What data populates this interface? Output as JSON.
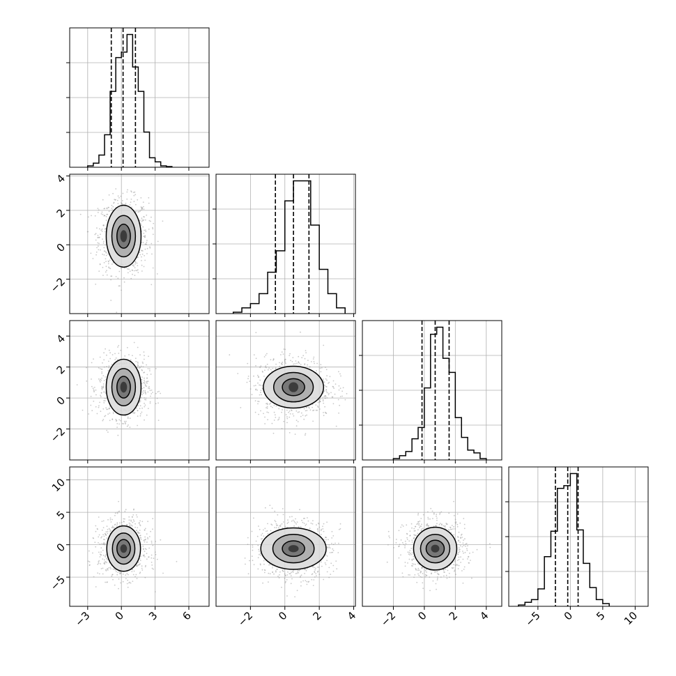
{
  "chart_data": {
    "type": "corner",
    "title": "",
    "variables": [
      {
        "axis_range": [
          -4.6,
          7.8
        ],
        "ticks": [
          -3,
          0,
          3,
          6
        ],
        "tick_labels": [
          "−3",
          "0",
          "3",
          "6"
        ],
        "quantiles": [
          -0.9,
          0.15,
          1.25
        ],
        "hist_bins": [
          -3.0,
          -2.5,
          -2.0,
          -1.5,
          -1.0,
          -0.5,
          0.0,
          0.5,
          1.0,
          1.5,
          2.0,
          2.5,
          3.0,
          3.5,
          4.0,
          4.5
        ],
        "hist_counts": [
          0.01,
          0.03,
          0.09,
          0.24,
          0.56,
          0.81,
          0.85,
          0.98,
          0.74,
          0.56,
          0.26,
          0.07,
          0.04,
          0.01,
          0.005
        ],
        "center": 0.2,
        "sigma": 1.0
      },
      {
        "axis_range": [
          -4.0,
          4.1
        ],
        "ticks": [
          -2,
          0,
          2,
          4
        ],
        "tick_labels": [
          "−2",
          "0",
          "2",
          "4"
        ],
        "quantiles": [
          -0.55,
          0.5,
          1.4
        ],
        "hist_bins": [
          -3.0,
          -2.5,
          -2.0,
          -1.5,
          -1.0,
          -0.5,
          0.0,
          0.5,
          1.0,
          1.5,
          2.0,
          2.5,
          3.0,
          3.5
        ],
        "hist_counts": [
          0.01,
          0.04,
          0.07,
          0.14,
          0.29,
          0.44,
          0.79,
          0.93,
          0.93,
          0.62,
          0.31,
          0.14,
          0.04
        ],
        "center": 0.5,
        "sigma": 1.0
      },
      {
        "axis_range": [
          -4.0,
          5.0
        ],
        "ticks": [
          -2,
          0,
          2,
          4
        ],
        "tick_labels": [
          "−2",
          "0",
          "2",
          "4"
        ],
        "quantiles": [
          -0.15,
          0.7,
          1.6
        ],
        "hist_bins": [
          -2.0,
          -1.6,
          -1.2,
          -0.8,
          -0.4,
          0.0,
          0.4,
          0.8,
          1.2,
          1.6,
          2.0,
          2.4,
          2.8,
          3.2,
          3.6,
          4.0
        ],
        "hist_counts": [
          0.01,
          0.03,
          0.06,
          0.15,
          0.23,
          0.51,
          0.89,
          0.94,
          0.72,
          0.62,
          0.3,
          0.16,
          0.07,
          0.05,
          0.01
        ],
        "center": 0.7,
        "sigma": 0.9
      },
      {
        "axis_range": [
          -9.5,
          12.0
        ],
        "ticks": [
          -5,
          0,
          5,
          10
        ],
        "tick_labels": [
          "−5",
          "0",
          "5",
          "10"
        ],
        "quantiles": [
          -2.3,
          -0.4,
          1.2
        ],
        "hist_bins": [
          -8.0,
          -7.0,
          -6.0,
          -5.0,
          -4.0,
          -3.0,
          -2.0,
          -1.0,
          0.0,
          1.0,
          2.0,
          3.0,
          4.0,
          5.0,
          6.0
        ],
        "hist_counts": [
          0.01,
          0.03,
          0.05,
          0.13,
          0.37,
          0.56,
          0.88,
          0.9,
          0.99,
          0.57,
          0.32,
          0.14,
          0.05,
          0.02
        ],
        "center": -0.6,
        "sigma": 2.0
      }
    ],
    "pairs": [
      {
        "row": 1,
        "col": 0,
        "contour_levels": [
          [
            0.3,
            0.35
          ],
          [
            0.6,
            0.7
          ],
          [
            1.05,
            1.2
          ],
          [
            1.55,
            1.8
          ]
        ],
        "rho": 0.0
      },
      {
        "row": 2,
        "col": 0,
        "contour_levels": [
          [
            0.3,
            0.35
          ],
          [
            0.6,
            0.7
          ],
          [
            1.05,
            1.2
          ],
          [
            1.55,
            1.8
          ]
        ],
        "rho": 0.0
      },
      {
        "row": 2,
        "col": 1,
        "contour_levels": [
          [
            0.28,
            0.32
          ],
          [
            0.65,
            0.55
          ],
          [
            1.15,
            0.95
          ],
          [
            1.75,
            1.35
          ]
        ],
        "rho": -0.05
      },
      {
        "row": 3,
        "col": 0,
        "contour_levels": [
          [
            0.3,
            0.65
          ],
          [
            0.6,
            1.4
          ],
          [
            1.0,
            2.4
          ],
          [
            1.5,
            3.5
          ]
        ],
        "rho": 0.0
      },
      {
        "row": 3,
        "col": 1,
        "contour_levels": [
          [
            0.3,
            0.55
          ],
          [
            0.65,
            1.2
          ],
          [
            1.2,
            2.2
          ],
          [
            1.9,
            3.2
          ]
        ],
        "rho": 0.05
      },
      {
        "row": 3,
        "col": 2,
        "contour_levels": [
          [
            0.3,
            0.6
          ],
          [
            0.65,
            1.3
          ],
          [
            1.05,
            2.2
          ],
          [
            1.55,
            3.3
          ]
        ],
        "rho": 0.0
      }
    ],
    "grid": true,
    "legend": "none",
    "colors": {
      "ink": "#000000",
      "grid": "#b0b0b0",
      "scatter": "#9a9a9a"
    }
  }
}
